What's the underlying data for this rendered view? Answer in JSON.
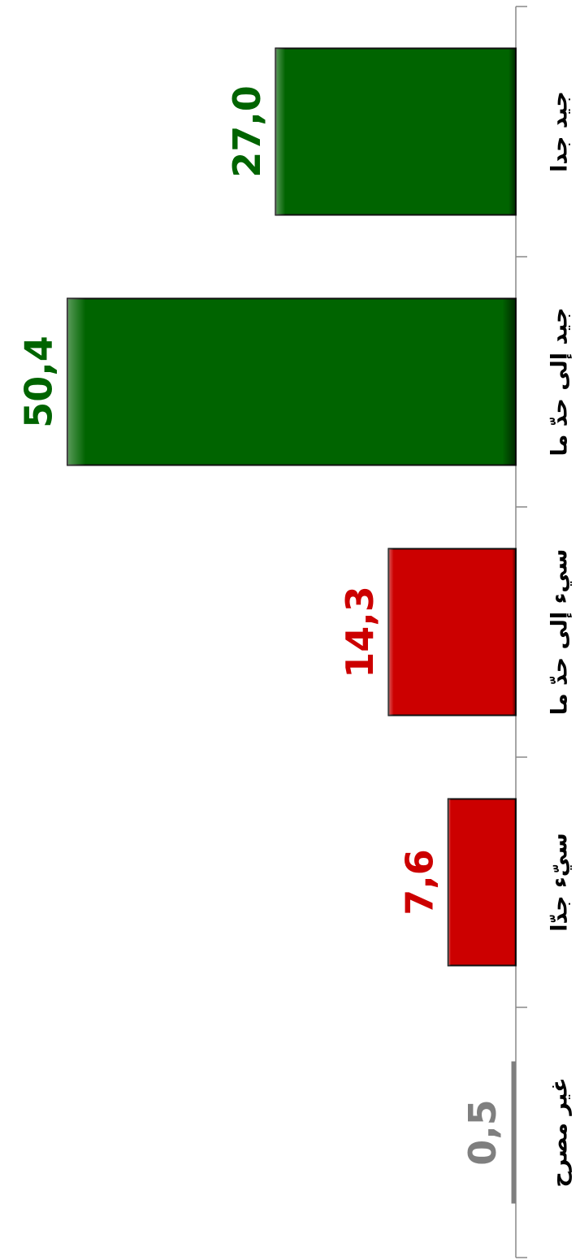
{
  "chart_data": {
    "type": "bar",
    "orientation": "horizontal",
    "categories": [
      "جيد جدا",
      "جيد إلى حدّ ما",
      "سيء إلى حدّ ما",
      "سيّء جدّا",
      "غير مصرح"
    ],
    "values": [
      27.0,
      50.4,
      14.3,
      7.6,
      0.5
    ],
    "value_labels": [
      "27,0",
      "50,4",
      "14,3",
      "7,6",
      "0,5"
    ],
    "colors": [
      "#006400",
      "#006400",
      "#cc0000",
      "#cc0000",
      "#7f7f7f"
    ]
  }
}
